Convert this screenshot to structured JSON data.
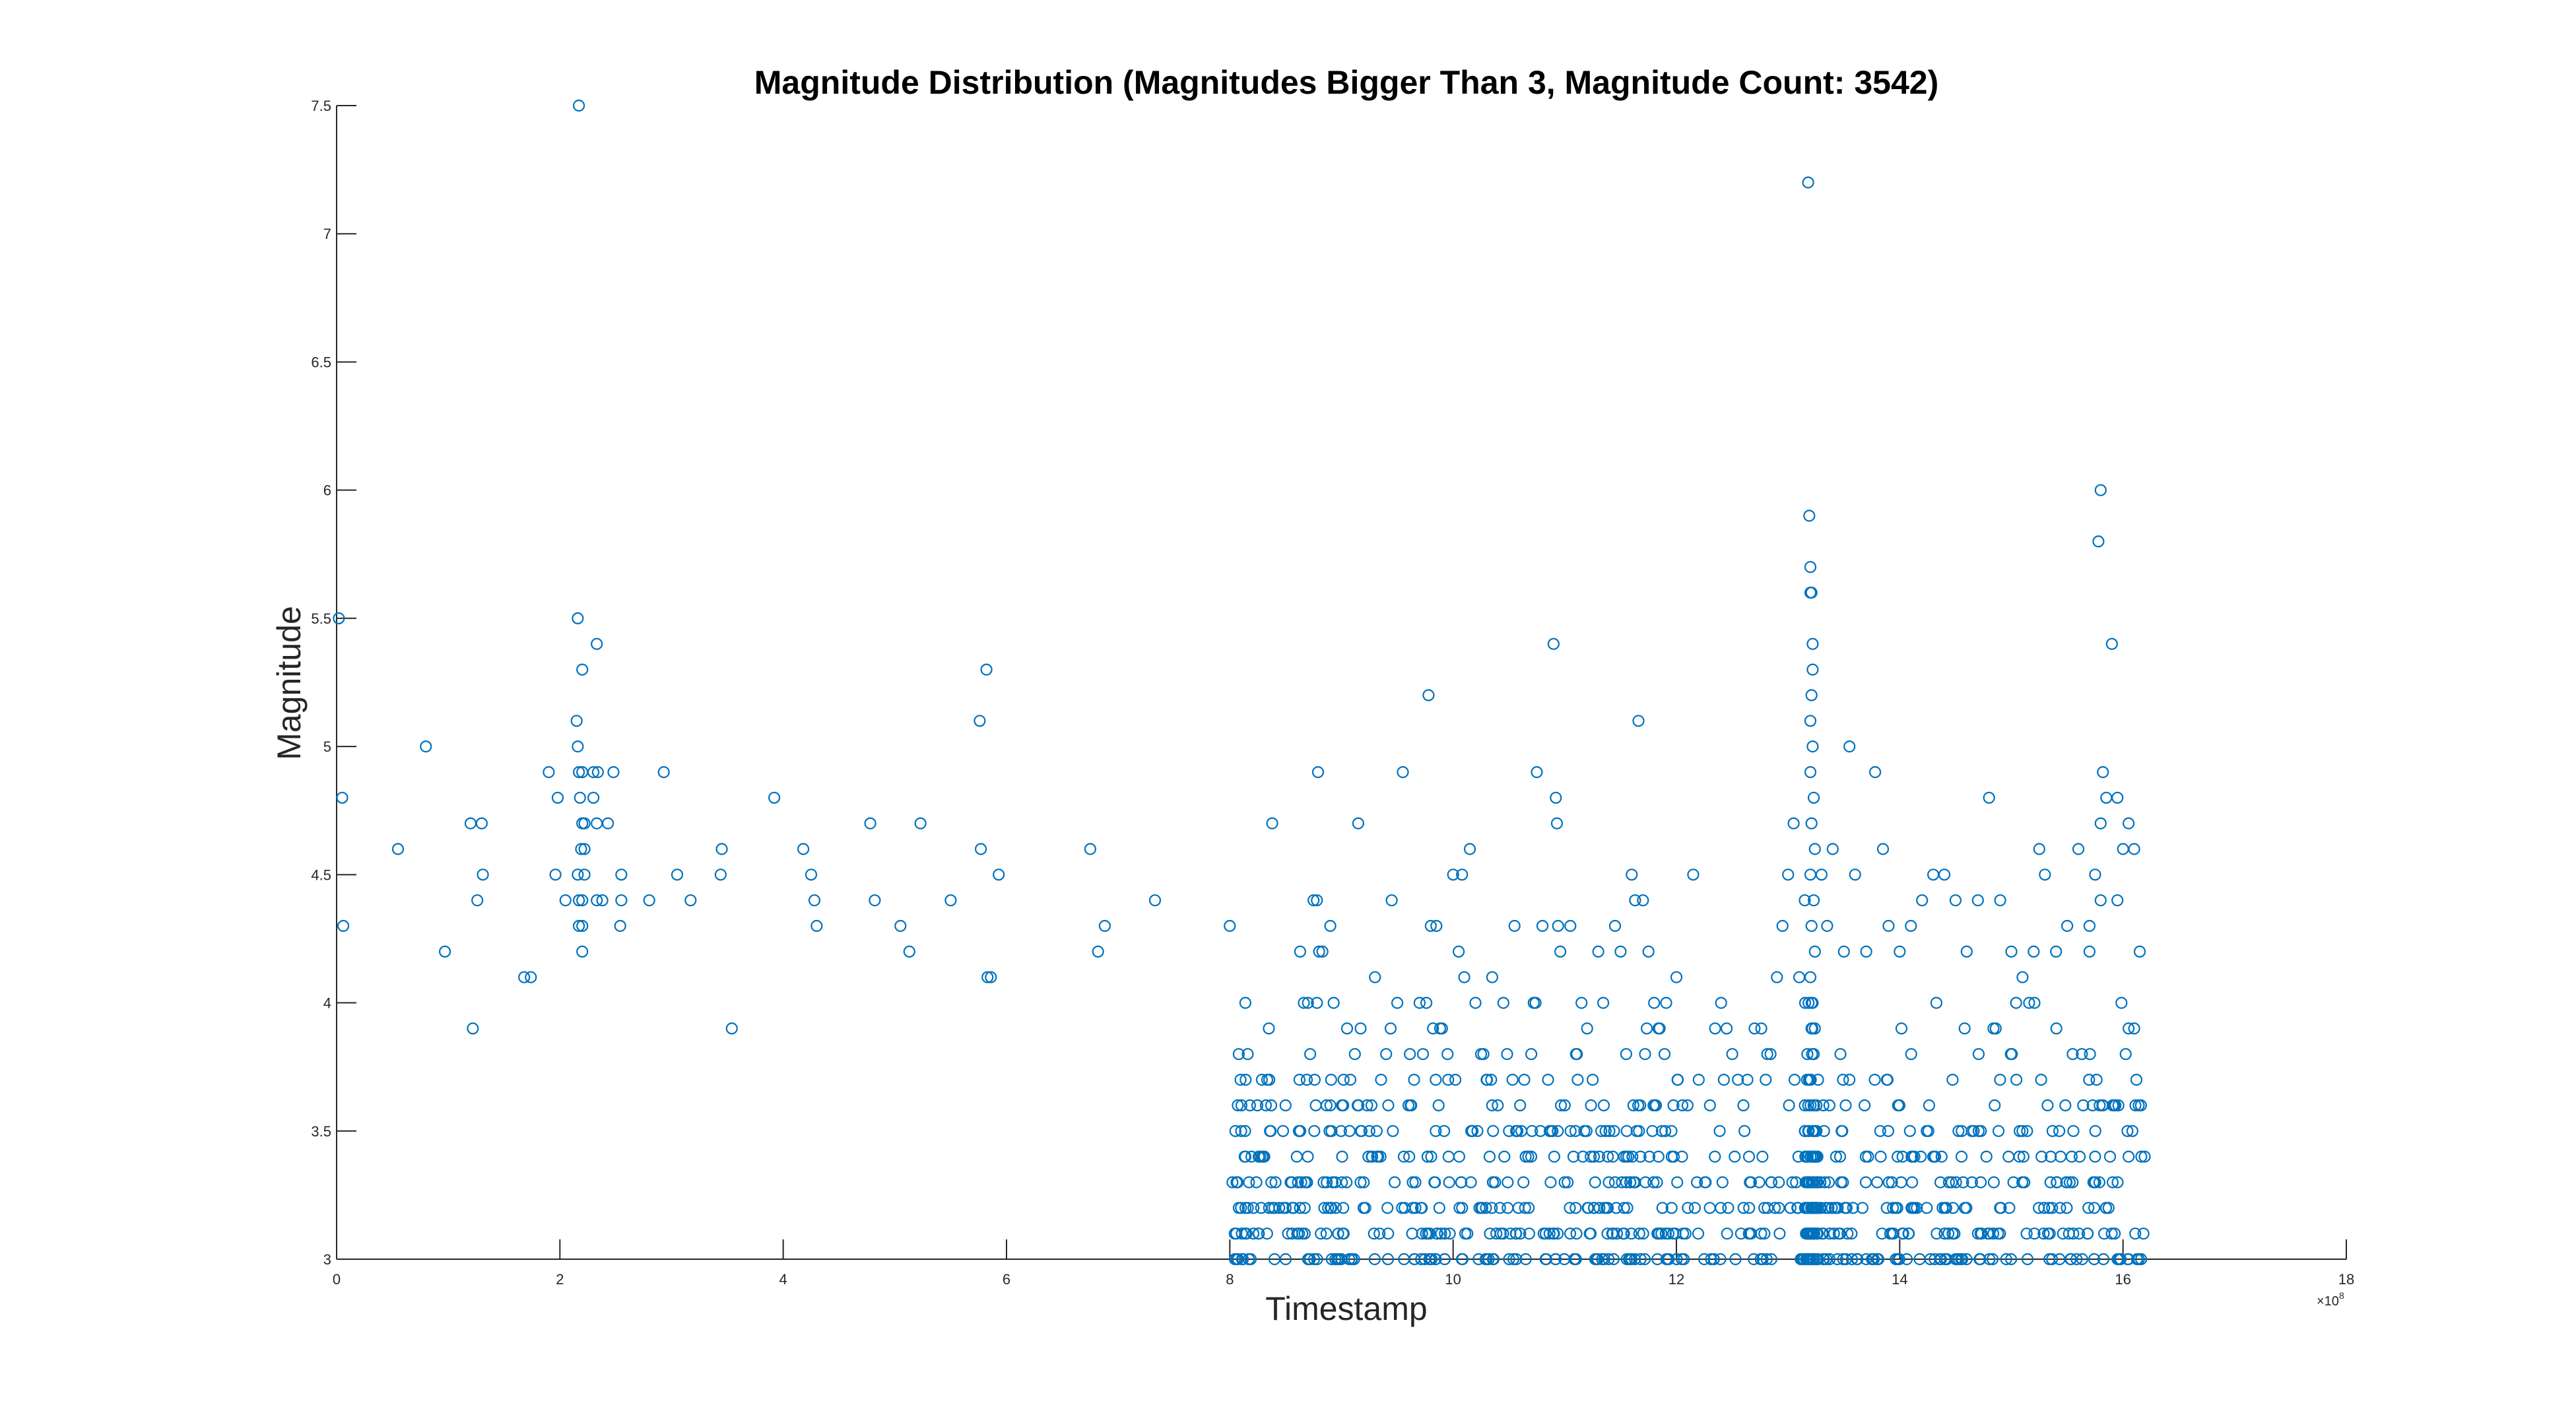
{
  "chart_data": {
    "type": "scatter",
    "title": "Magnitude Distribution (Magnitudes Bigger Than 3, Magnitude Count: 3542)",
    "xlabel": "Timestamp",
    "ylabel": "Magnitude",
    "x_exponent_label": "×10",
    "x_exponent_power": "8",
    "xlim": [
      0,
      18
    ],
    "ylim": [
      3,
      7.5
    ],
    "x_ticks": [
      "0",
      "2",
      "4",
      "6",
      "8",
      "10",
      "12",
      "14",
      "16",
      "18"
    ],
    "y_ticks": [
      "3",
      "3.5",
      "4",
      "4.5",
      "5",
      "5.5",
      "6",
      "6.5",
      "7",
      "7.5"
    ],
    "grid": false,
    "marker_color": "#0072BD",
    "points": [
      [
        0.02,
        5.5
      ],
      [
        0.05,
        4.8
      ],
      [
        0.06,
        4.3
      ],
      [
        0.55,
        4.6
      ],
      [
        0.8,
        5.0
      ],
      [
        0.97,
        4.2
      ],
      [
        1.2,
        4.7
      ],
      [
        1.3,
        4.7
      ],
      [
        1.22,
        3.9
      ],
      [
        1.26,
        4.4
      ],
      [
        1.31,
        4.5
      ],
      [
        1.68,
        4.1
      ],
      [
        1.74,
        4.1
      ],
      [
        1.9,
        4.9
      ],
      [
        1.96,
        4.5
      ],
      [
        1.98,
        4.8
      ],
      [
        2.05,
        4.4
      ],
      [
        2.16,
        5.5
      ],
      [
        2.17,
        7.5
      ],
      [
        2.15,
        5.1
      ],
      [
        2.16,
        5.0
      ],
      [
        2.17,
        4.9
      ],
      [
        2.2,
        4.9
      ],
      [
        2.18,
        4.8
      ],
      [
        2.2,
        4.7
      ],
      [
        2.22,
        4.7
      ],
      [
        2.19,
        4.6
      ],
      [
        2.22,
        4.6
      ],
      [
        2.16,
        4.5
      ],
      [
        2.22,
        4.5
      ],
      [
        2.17,
        4.4
      ],
      [
        2.2,
        4.4
      ],
      [
        2.17,
        4.3
      ],
      [
        2.2,
        4.3
      ],
      [
        2.2,
        4.2
      ],
      [
        2.2,
        5.3
      ],
      [
        2.3,
        4.9
      ],
      [
        2.34,
        4.9
      ],
      [
        2.33,
        5.4
      ],
      [
        2.3,
        4.8
      ],
      [
        2.33,
        4.7
      ],
      [
        2.38,
        4.4
      ],
      [
        2.33,
        4.4
      ],
      [
        2.43,
        4.7
      ],
      [
        2.48,
        4.9
      ],
      [
        2.55,
        4.5
      ],
      [
        2.55,
        4.4
      ],
      [
        2.54,
        4.3
      ],
      [
        2.8,
        4.4
      ],
      [
        2.93,
        4.9
      ],
      [
        3.05,
        4.5
      ],
      [
        3.17,
        4.4
      ],
      [
        3.45,
        4.6
      ],
      [
        3.44,
        4.5
      ],
      [
        3.54,
        3.9
      ],
      [
        3.92,
        4.8
      ],
      [
        4.18,
        4.6
      ],
      [
        4.25,
        4.5
      ],
      [
        4.28,
        4.4
      ],
      [
        4.3,
        4.3
      ],
      [
        4.78,
        4.7
      ],
      [
        4.82,
        4.4
      ],
      [
        5.05,
        4.3
      ],
      [
        5.13,
        4.2
      ],
      [
        5.23,
        4.7
      ],
      [
        5.5,
        4.4
      ],
      [
        5.76,
        5.1
      ],
      [
        5.82,
        5.3
      ],
      [
        5.77,
        4.6
      ],
      [
        5.83,
        4.1
      ],
      [
        5.86,
        4.1
      ],
      [
        5.93,
        4.5
      ],
      [
        6.75,
        4.6
      ],
      [
        6.82,
        4.2
      ],
      [
        6.88,
        4.3
      ],
      [
        7.33,
        4.4
      ],
      [
        8.0,
        4.3
      ],
      [
        8.05,
        3.5
      ],
      [
        8.08,
        3.8
      ],
      [
        8.06,
        3.3
      ],
      [
        8.08,
        3.2
      ],
      [
        8.14,
        3.2
      ],
      [
        8.06,
        3.0
      ],
      [
        8.11,
        3.0
      ],
      [
        8.17,
        3.0
      ],
      [
        8.35,
        3.9
      ],
      [
        8.38,
        4.7
      ],
      [
        8.36,
        3.5
      ],
      [
        8.5,
        3.0
      ],
      [
        8.6,
        3.4
      ],
      [
        8.63,
        4.2
      ],
      [
        8.62,
        3.1
      ],
      [
        8.7,
        4.0
      ],
      [
        8.72,
        3.8
      ],
      [
        8.75,
        4.4
      ],
      [
        8.78,
        4.4
      ],
      [
        8.77,
        3.6
      ],
      [
        8.79,
        4.9
      ],
      [
        8.8,
        4.2
      ],
      [
        8.78,
        4.0
      ],
      [
        8.76,
        3.7
      ],
      [
        8.83,
        4.2
      ],
      [
        8.84,
        3.3
      ],
      [
        8.88,
        3.2
      ],
      [
        8.9,
        4.3
      ],
      [
        8.93,
        4.0
      ],
      [
        8.92,
        3.3
      ],
      [
        8.95,
        3.2
      ],
      [
        8.97,
        3.0
      ],
      [
        9.05,
        3.9
      ],
      [
        9.08,
        3.7
      ],
      [
        9.12,
        3.8
      ],
      [
        9.15,
        4.7
      ],
      [
        9.18,
        3.5
      ],
      [
        9.2,
        3.3
      ],
      [
        9.25,
        3.5
      ],
      [
        9.3,
        4.1
      ],
      [
        9.35,
        3.4
      ],
      [
        9.4,
        3.8
      ],
      [
        9.45,
        4.4
      ],
      [
        9.5,
        4.0
      ],
      [
        9.55,
        4.9
      ],
      [
        9.6,
        3.6
      ],
      [
        9.65,
        3.7
      ],
      [
        9.7,
        4.0
      ],
      [
        9.73,
        3.8
      ],
      [
        9.76,
        4.0
      ],
      [
        9.78,
        5.2
      ],
      [
        9.8,
        4.3
      ],
      [
        9.82,
        3.9
      ],
      [
        9.85,
        4.3
      ],
      [
        9.87,
        3.6
      ],
      [
        9.9,
        3.9
      ],
      [
        9.92,
        3.5
      ],
      [
        9.95,
        3.8
      ],
      [
        9.97,
        3.1
      ],
      [
        10.0,
        4.5
      ],
      [
        10.02,
        3.7
      ],
      [
        10.05,
        4.2
      ],
      [
        10.08,
        4.5
      ],
      [
        10.1,
        4.1
      ],
      [
        10.15,
        4.6
      ],
      [
        10.2,
        4.0
      ],
      [
        10.25,
        3.8
      ],
      [
        10.3,
        3.7
      ],
      [
        10.35,
        4.1
      ],
      [
        10.4,
        3.6
      ],
      [
        10.45,
        4.0
      ],
      [
        10.5,
        3.5
      ],
      [
        10.55,
        4.3
      ],
      [
        10.6,
        3.6
      ],
      [
        10.65,
        3.4
      ],
      [
        10.7,
        3.8
      ],
      [
        10.75,
        4.9
      ],
      [
        10.8,
        4.3
      ],
      [
        10.85,
        3.7
      ],
      [
        10.9,
        5.4
      ],
      [
        10.92,
        4.8
      ],
      [
        10.93,
        4.7
      ],
      [
        10.94,
        4.3
      ],
      [
        10.96,
        4.2
      ],
      [
        11.0,
        3.6
      ],
      [
        11.05,
        4.3
      ],
      [
        11.1,
        3.8
      ],
      [
        11.15,
        4.0
      ],
      [
        11.2,
        3.9
      ],
      [
        11.25,
        3.7
      ],
      [
        11.3,
        4.2
      ],
      [
        11.35,
        3.6
      ],
      [
        11.4,
        3.5
      ],
      [
        11.45,
        4.3
      ],
      [
        11.5,
        4.2
      ],
      [
        11.55,
        3.8
      ],
      [
        11.6,
        4.5
      ],
      [
        11.63,
        4.4
      ],
      [
        11.66,
        5.1
      ],
      [
        11.7,
        4.4
      ],
      [
        11.75,
        4.2
      ],
      [
        11.8,
        4.0
      ],
      [
        11.85,
        3.9
      ],
      [
        11.9,
        3.5
      ],
      [
        12.0,
        4.1
      ],
      [
        12.05,
        3.4
      ],
      [
        12.1,
        3.6
      ],
      [
        12.15,
        4.5
      ],
      [
        12.2,
        3.7
      ],
      [
        12.3,
        3.6
      ],
      [
        12.4,
        4.0
      ],
      [
        12.45,
        3.9
      ],
      [
        12.5,
        3.8
      ],
      [
        12.6,
        3.6
      ],
      [
        12.7,
        3.9
      ],
      [
        12.8,
        3.7
      ],
      [
        12.9,
        4.1
      ],
      [
        12.95,
        4.3
      ],
      [
        13.0,
        4.5
      ],
      [
        13.05,
        4.7
      ],
      [
        13.1,
        4.1
      ],
      [
        13.15,
        4.4
      ],
      [
        13.18,
        7.2
      ],
      [
        13.19,
        5.9
      ],
      [
        13.2,
        5.7
      ],
      [
        13.21,
        5.6
      ],
      [
        13.2,
        5.6
      ],
      [
        13.22,
        5.4
      ],
      [
        13.22,
        5.3
      ],
      [
        13.21,
        5.2
      ],
      [
        13.2,
        5.1
      ],
      [
        13.22,
        5.0
      ],
      [
        13.2,
        4.9
      ],
      [
        13.23,
        4.8
      ],
      [
        13.21,
        4.7
      ],
      [
        13.24,
        4.6
      ],
      [
        13.2,
        4.5
      ],
      [
        13.23,
        4.4
      ],
      [
        13.21,
        4.3
      ],
      [
        13.24,
        4.2
      ],
      [
        13.2,
        4.1
      ],
      [
        13.22,
        4.0
      ],
      [
        13.21,
        3.9
      ],
      [
        13.23,
        3.8
      ],
      [
        13.3,
        4.5
      ],
      [
        13.35,
        4.3
      ],
      [
        13.4,
        4.6
      ],
      [
        13.5,
        4.2
      ],
      [
        13.55,
        5.0
      ],
      [
        13.6,
        4.5
      ],
      [
        13.7,
        4.2
      ],
      [
        13.78,
        4.9
      ],
      [
        13.85,
        4.6
      ],
      [
        13.9,
        4.3
      ],
      [
        14.0,
        4.2
      ],
      [
        14.1,
        4.3
      ],
      [
        14.2,
        4.4
      ],
      [
        14.3,
        4.5
      ],
      [
        14.4,
        4.5
      ],
      [
        14.5,
        4.4
      ],
      [
        14.6,
        4.2
      ],
      [
        14.7,
        4.4
      ],
      [
        14.8,
        4.8
      ],
      [
        14.9,
        4.4
      ],
      [
        15.0,
        4.2
      ],
      [
        15.1,
        4.1
      ],
      [
        15.2,
        4.2
      ],
      [
        15.25,
        4.6
      ],
      [
        15.3,
        4.5
      ],
      [
        15.4,
        4.2
      ],
      [
        15.5,
        4.3
      ],
      [
        15.6,
        4.6
      ],
      [
        15.7,
        4.3
      ],
      [
        15.8,
        6.0
      ],
      [
        15.78,
        5.8
      ],
      [
        15.8,
        4.7
      ],
      [
        15.82,
        4.9
      ],
      [
        15.85,
        4.8
      ],
      [
        15.9,
        5.4
      ],
      [
        15.95,
        4.4
      ],
      [
        16.0,
        4.6
      ],
      [
        16.05,
        4.7
      ],
      [
        16.1,
        4.6
      ],
      [
        16.15,
        4.2
      ],
      [
        15.95,
        4.8
      ],
      [
        15.75,
        4.5
      ],
      [
        15.8,
        4.4
      ],
      [
        15.7,
        4.2
      ],
      [
        16.1,
        3.9
      ],
      [
        16.12,
        3.7
      ],
      [
        16.14,
        3.6
      ],
      [
        16.05,
        3.9
      ]
    ],
    "dense_region": {
      "x_range": [
        8.0,
        16.2
      ],
      "y_values": [
        3.0,
        3.1,
        3.2,
        3.3,
        3.4,
        3.5,
        3.6,
        3.7,
        3.8,
        3.9,
        4.0
      ]
    }
  }
}
